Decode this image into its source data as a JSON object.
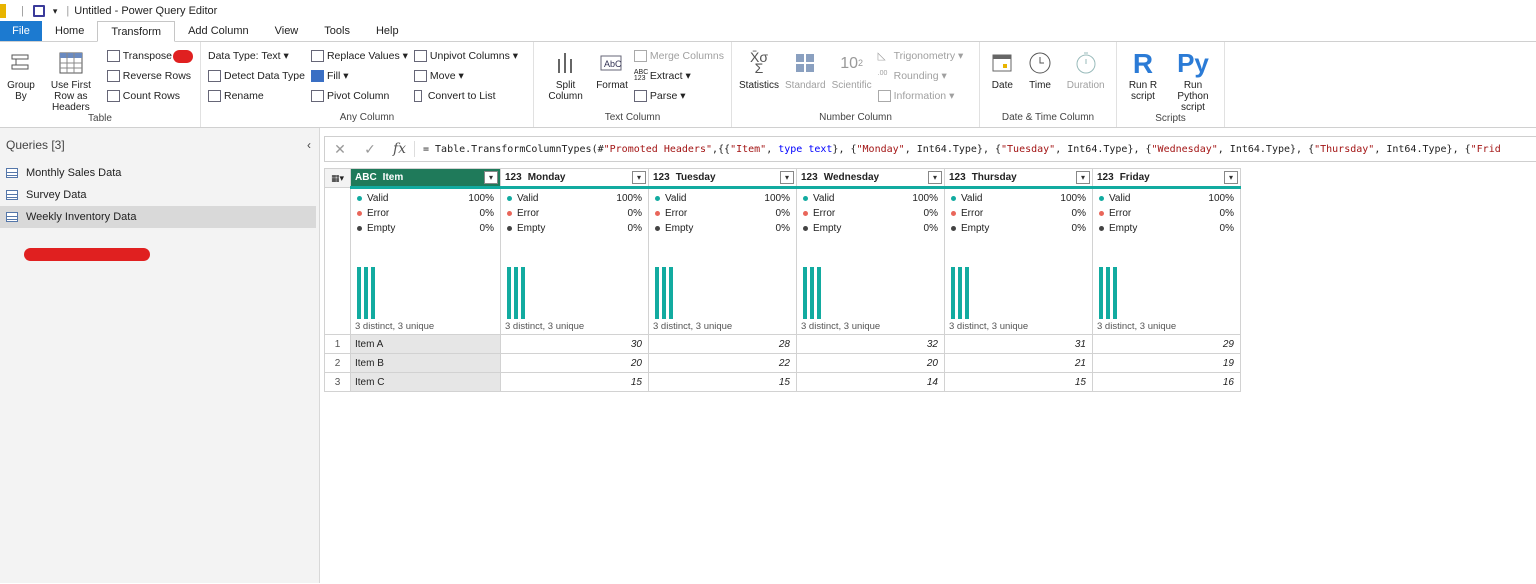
{
  "window": {
    "title": "Untitled - Power Query Editor"
  },
  "tabs": [
    "File",
    "Home",
    "Transform",
    "Add Column",
    "View",
    "Tools",
    "Help"
  ],
  "ribbon": {
    "table": {
      "label": "Table",
      "group_by": "Group By",
      "use_first_row": "Use First Row as Headers",
      "transpose": "Transpose",
      "reverse_rows": "Reverse Rows",
      "count_rows": "Count Rows"
    },
    "any_column": {
      "label": "Any Column",
      "data_type": "Data Type: Text",
      "detect_data_type": "Detect Data Type",
      "rename": "Rename",
      "replace_values": "Replace Values",
      "fill": "Fill",
      "pivot_column": "Pivot Column",
      "unpivot_columns": "Unpivot Columns",
      "move": "Move",
      "convert_to_list": "Convert to List"
    },
    "text_column": {
      "label": "Text Column",
      "split_column": "Split Column",
      "format": "Format",
      "merge_columns": "Merge Columns",
      "extract": "Extract",
      "parse": "Parse"
    },
    "number_column": {
      "label": "Number Column",
      "statistics": "Statistics",
      "standard": "Standard",
      "scientific": "Scientific",
      "trigonometry": "Trigonometry",
      "rounding": "Rounding",
      "information": "Information"
    },
    "datetime_column": {
      "label": "Date & Time Column",
      "date": "Date",
      "time": "Time",
      "duration": "Duration"
    },
    "scripts": {
      "label": "Scripts",
      "run_r": "Run R script",
      "run_python": "Run Python script"
    }
  },
  "queries": {
    "header": "Queries [3]",
    "items": [
      "Monthly Sales Data",
      "Survey Data",
      "Weekly Inventory Data"
    ],
    "selected": "Weekly Inventory Data"
  },
  "formula": {
    "text": "= Table.TransformColumnTypes(#\"Promoted Headers\",{{\"Item\", type text}, {\"Monday\", Int64.Type}, {\"Tuesday\", Int64.Type}, {\"Wednesday\", Int64.Type}, {\"Thursday\", Int64.Type}, {\"Frid"
  },
  "grid": {
    "columns": [
      {
        "name": "Item",
        "type": "ABC"
      },
      {
        "name": "Monday",
        "type": "123"
      },
      {
        "name": "Tuesday",
        "type": "123"
      },
      {
        "name": "Wednesday",
        "type": "123"
      },
      {
        "name": "Thursday",
        "type": "123"
      },
      {
        "name": "Friday",
        "type": "123"
      }
    ],
    "profile": {
      "valid_label": "Valid",
      "valid_pct": "100%",
      "error_label": "Error",
      "error_pct": "0%",
      "empty_label": "Empty",
      "empty_pct": "0%",
      "distinct": "3 distinct, 3 unique"
    },
    "rows": [
      {
        "n": "1",
        "item": "Item A",
        "values": [
          "30",
          "28",
          "32",
          "31",
          "29"
        ]
      },
      {
        "n": "2",
        "item": "Item B",
        "values": [
          "20",
          "22",
          "20",
          "21",
          "19"
        ]
      },
      {
        "n": "3",
        "item": "Item C",
        "values": [
          "15",
          "15",
          "14",
          "15",
          "16"
        ]
      }
    ]
  },
  "colors": {
    "accent": "#1c7ad0",
    "teal": "#12aba0",
    "header_selected": "#1f7a5a",
    "redaction": "#e02020"
  }
}
